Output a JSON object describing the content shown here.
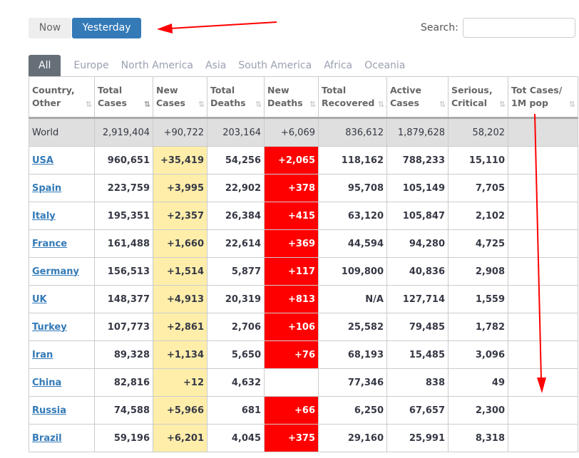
{
  "toggle": {
    "now": "Now",
    "yesterday": "Yesterday",
    "active": "Yesterday"
  },
  "search": {
    "label": "Search:",
    "value": ""
  },
  "tabs": [
    "All",
    "Europe",
    "North America",
    "Asia",
    "South America",
    "Africa",
    "Oceania"
  ],
  "active_tab": "All",
  "columns": [
    "Country, Other",
    "Total Cases",
    "New Cases",
    "Total Deaths",
    "New Deaths",
    "Total Recovered",
    "Active Cases",
    "Serious, Critical",
    "Tot Cases/ 1M pop"
  ],
  "sorted_column": "Total Cases",
  "world": [
    "World",
    "2,919,404",
    "+90,722",
    "203,164",
    "+6,069",
    "836,612",
    "1,879,628",
    "58,202",
    ""
  ],
  "rows": [
    [
      "USA",
      "960,651",
      "+35,419",
      "54,256",
      "+2,065",
      "118,162",
      "788,233",
      "15,110"
    ],
    [
      "Spain",
      "223,759",
      "+3,995",
      "22,902",
      "+378",
      "95,708",
      "105,149",
      "7,705"
    ],
    [
      "Italy",
      "195,351",
      "+2,357",
      "26,384",
      "+415",
      "63,120",
      "105,847",
      "2,102"
    ],
    [
      "France",
      "161,488",
      "+1,660",
      "22,614",
      "+369",
      "44,594",
      "94,280",
      "4,725"
    ],
    [
      "Germany",
      "156,513",
      "+1,514",
      "5,877",
      "+117",
      "109,800",
      "40,836",
      "2,908"
    ],
    [
      "UK",
      "148,377",
      "+4,913",
      "20,319",
      "+813",
      "N/A",
      "127,714",
      "1,559"
    ],
    [
      "Turkey",
      "107,773",
      "+2,861",
      "2,706",
      "+106",
      "25,582",
      "79,485",
      "1,782"
    ],
    [
      "Iran",
      "89,328",
      "+1,134",
      "5,650",
      "+76",
      "68,193",
      "15,485",
      "3,096"
    ],
    [
      "China",
      "82,816",
      "+12",
      "4,632",
      "",
      "77,346",
      "838",
      "49"
    ],
    [
      "Russia",
      "74,588",
      "+5,966",
      "681",
      "+66",
      "6,250",
      "67,657",
      "2,300"
    ],
    [
      "Brazil",
      "59,196",
      "+6,201",
      "4,045",
      "+375",
      "29,160",
      "25,991",
      "8,318"
    ]
  ],
  "colors": {
    "new_cases_bg": "#ffeeaa",
    "new_deaths_bg": "#ff0000",
    "link": "#337ab7",
    "active_button": "#337ab7",
    "annotation_arrow": "#ff0000"
  }
}
